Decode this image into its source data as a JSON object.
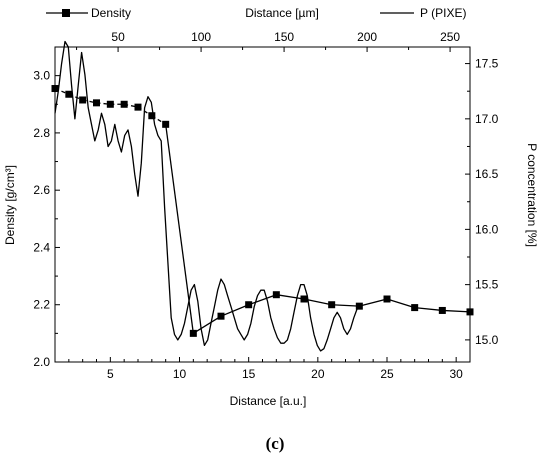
{
  "caption": "(c)",
  "chart_data": {
    "type": "line",
    "xlabel": "Distance [a.u.]",
    "x2label": "Distance [µm]",
    "ylabel": "Density [g/cm³]",
    "y2label": "P concentration [%]",
    "xlim": [
      1,
      31
    ],
    "x2lim": [
      12,
      262
    ],
    "ylim": [
      2.0,
      3.1
    ],
    "y2lim": [
      14.8,
      17.65
    ],
    "xticks": [
      5,
      10,
      15,
      20,
      25,
      30
    ],
    "x2ticks": [
      50,
      100,
      150,
      200,
      250
    ],
    "yticks": [
      2.0,
      2.2,
      2.4,
      2.6,
      2.8,
      3.0
    ],
    "y2ticks": [
      15.0,
      15.5,
      16.0,
      16.5,
      17.0,
      17.5
    ],
    "legend": [
      {
        "label": "Density",
        "marker": "square",
        "line": "dashed-solid"
      },
      {
        "label": "P (PIXE)",
        "marker": "none",
        "line": "solid"
      }
    ],
    "series": [
      {
        "name": "Density",
        "axis": "left-bottom",
        "x": [
          1,
          2,
          3,
          4,
          5,
          6,
          7,
          8,
          9,
          11,
          13,
          15,
          17,
          19,
          21,
          23,
          25,
          27,
          29,
          31
        ],
        "y": [
          2.955,
          2.935,
          2.915,
          2.905,
          2.9,
          2.9,
          2.89,
          2.86,
          2.83,
          2.1,
          2.16,
          2.2,
          2.235,
          2.22,
          2.2,
          2.195,
          2.22,
          2.19,
          2.18,
          2.175
        ],
        "color": "#000000"
      },
      {
        "name": "P (PIXE)",
        "axis": "right-top",
        "x": [
          12,
          14,
          16,
          18,
          20,
          22,
          24,
          26,
          28,
          30,
          32,
          34,
          36,
          38,
          40,
          42,
          44,
          46,
          48,
          50,
          52,
          54,
          56,
          58,
          60,
          62,
          64,
          66,
          68,
          70,
          72,
          74,
          76,
          78,
          80,
          82,
          84,
          86,
          88,
          90,
          92,
          94,
          96,
          98,
          100,
          102,
          104,
          106,
          108,
          110,
          112,
          114,
          116,
          118,
          120,
          122,
          124,
          126,
          128,
          130,
          132,
          134,
          136,
          138,
          140,
          142,
          144,
          146,
          148,
          150,
          152,
          154,
          156,
          158,
          160,
          162,
          164,
          166,
          168,
          170,
          172,
          174,
          176,
          178,
          180,
          182,
          184,
          186,
          188,
          190,
          192,
          194
        ],
        "y": [
          17.05,
          17.25,
          17.5,
          17.7,
          17.65,
          17.3,
          17.0,
          17.3,
          17.6,
          17.4,
          17.1,
          16.95,
          16.8,
          16.9,
          17.05,
          16.95,
          16.75,
          16.8,
          16.95,
          16.8,
          16.7,
          16.85,
          16.9,
          16.75,
          16.5,
          16.3,
          16.6,
          17.1,
          17.2,
          17.15,
          16.95,
          16.85,
          16.8,
          16.2,
          15.7,
          15.2,
          15.05,
          15.0,
          15.05,
          15.15,
          15.3,
          15.45,
          15.5,
          15.35,
          15.1,
          14.95,
          15.0,
          15.15,
          15.3,
          15.45,
          15.55,
          15.5,
          15.4,
          15.3,
          15.2,
          15.1,
          15.05,
          15.0,
          15.05,
          15.15,
          15.3,
          15.4,
          15.45,
          15.45,
          15.35,
          15.2,
          15.1,
          15.02,
          14.97,
          14.97,
          15.0,
          15.1,
          15.25,
          15.4,
          15.5,
          15.5,
          15.4,
          15.2,
          15.05,
          14.95,
          14.9,
          14.92,
          15.0,
          15.1,
          15.2,
          15.25,
          15.2,
          15.1,
          15.05,
          15.1,
          15.2,
          15.28
        ],
        "color": "#000000"
      }
    ]
  }
}
